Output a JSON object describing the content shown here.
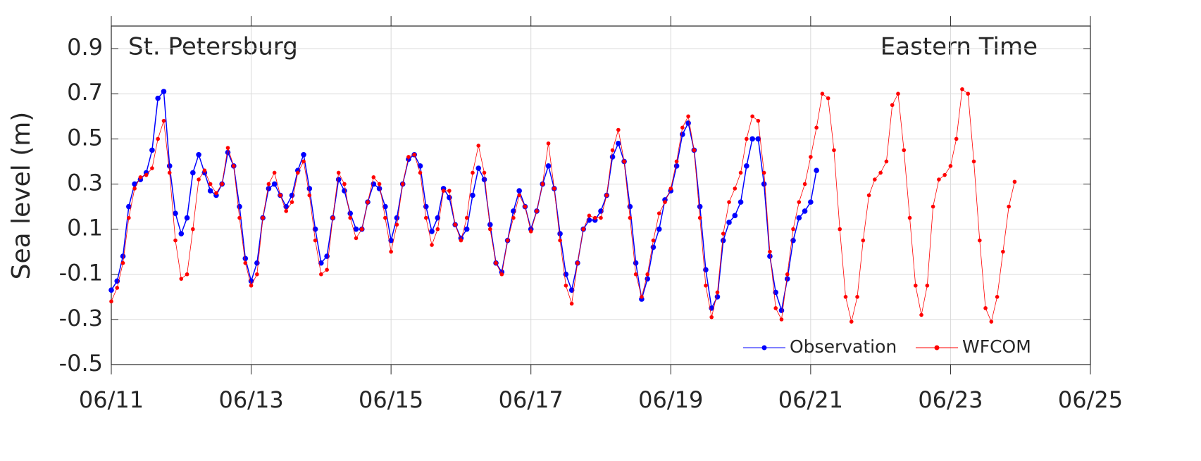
{
  "chart_data": {
    "type": "line",
    "annotations": [
      "St. Petersburg",
      "Eastern Time"
    ],
    "y_label": "Sea level (m)",
    "x": [
      0,
      2,
      4,
      6,
      8,
      10,
      12,
      14,
      16,
      18,
      20,
      22,
      24,
      26,
      28,
      30,
      32,
      34,
      36,
      38,
      40,
      42,
      44,
      46,
      48,
      50,
      52,
      54,
      56,
      58,
      60,
      62,
      64,
      66,
      68,
      70,
      72,
      74,
      76,
      78,
      80,
      82,
      84,
      86,
      88,
      90,
      92,
      94,
      96,
      98,
      100,
      102,
      104,
      106,
      108,
      110,
      112,
      114,
      116,
      118,
      120,
      122,
      124,
      126,
      128,
      130,
      132,
      134,
      136,
      138,
      140,
      142,
      144,
      146,
      148,
      150,
      152,
      154,
      156,
      158,
      160,
      162,
      164,
      166,
      168,
      170,
      172,
      174,
      176,
      178,
      180,
      182,
      184,
      186,
      188,
      190,
      192,
      194,
      196,
      198,
      200,
      202,
      204,
      206,
      208,
      210,
      212,
      214,
      216,
      218,
      220,
      222,
      224,
      226,
      228,
      230,
      232,
      234,
      236,
      238,
      240,
      242,
      244,
      246,
      248,
      250,
      252,
      254,
      256,
      258,
      260,
      262,
      264,
      266,
      268,
      270,
      272,
      274,
      276,
      278,
      280,
      282,
      284,
      286,
      288,
      290,
      292,
      294,
      296,
      298,
      300,
      302,
      304,
      306,
      308,
      310
    ],
    "series": [
      {
        "name": "Observation",
        "color": "#0000ff",
        "values": [
          -0.17,
          -0.13,
          -0.02,
          0.2,
          0.3,
          0.32,
          0.35,
          0.45,
          0.68,
          0.71,
          0.38,
          0.17,
          0.08,
          0.15,
          0.35,
          0.43,
          0.35,
          0.27,
          0.25,
          0.3,
          0.44,
          0.38,
          0.2,
          -0.03,
          -0.13,
          -0.05,
          0.15,
          0.28,
          0.3,
          0.25,
          0.2,
          0.25,
          0.36,
          0.43,
          0.28,
          0.1,
          -0.05,
          -0.02,
          0.15,
          0.32,
          0.27,
          0.17,
          0.1,
          0.1,
          0.22,
          0.3,
          0.28,
          0.2,
          0.05,
          0.15,
          0.3,
          0.41,
          0.43,
          0.38,
          0.2,
          0.09,
          0.15,
          0.28,
          0.24,
          0.12,
          0.06,
          0.1,
          0.25,
          0.37,
          0.32,
          0.12,
          -0.05,
          -0.09,
          0.05,
          0.18,
          0.27,
          0.2,
          0.1,
          0.18,
          0.3,
          0.38,
          0.28,
          0.08,
          -0.1,
          -0.17,
          -0.05,
          0.1,
          0.14,
          0.14,
          0.18,
          0.25,
          0.42,
          0.48,
          0.4,
          0.2,
          -0.05,
          -0.21,
          -0.12,
          0.02,
          0.1,
          0.23,
          0.27,
          0.38,
          0.52,
          0.57,
          0.45,
          0.2,
          -0.08,
          -0.25,
          -0.2,
          0.05,
          0.13,
          0.16,
          0.22,
          0.38,
          0.5,
          0.5,
          0.3,
          -0.02,
          -0.18,
          -0.26,
          -0.12,
          0.05,
          0.15,
          0.18,
          0.22,
          0.36,
          null,
          null,
          null,
          null,
          null,
          null,
          null,
          null,
          null,
          null,
          null,
          null,
          null,
          null,
          null,
          null,
          null,
          null,
          null,
          null,
          null,
          null,
          null,
          null,
          null,
          null,
          null,
          null,
          null,
          null,
          null,
          null,
          null,
          null
        ]
      },
      {
        "name": "WFCOM",
        "color": "#ff0000",
        "values": [
          -0.22,
          -0.16,
          -0.05,
          0.15,
          0.28,
          0.33,
          0.34,
          0.37,
          0.5,
          0.58,
          0.35,
          0.05,
          -0.12,
          -0.1,
          0.1,
          0.32,
          0.36,
          0.3,
          0.26,
          0.3,
          0.46,
          0.38,
          0.15,
          -0.05,
          -0.15,
          -0.1,
          0.15,
          0.3,
          0.35,
          0.25,
          0.18,
          0.22,
          0.35,
          0.4,
          0.25,
          0.05,
          -0.1,
          -0.08,
          0.15,
          0.35,
          0.3,
          0.15,
          0.06,
          0.1,
          0.22,
          0.33,
          0.3,
          0.15,
          0.0,
          0.12,
          0.3,
          0.42,
          0.43,
          0.35,
          0.15,
          0.03,
          0.1,
          0.27,
          0.27,
          0.12,
          0.05,
          0.15,
          0.35,
          0.47,
          0.35,
          0.1,
          -0.05,
          -0.1,
          0.05,
          0.15,
          0.25,
          0.2,
          0.09,
          0.18,
          0.3,
          0.48,
          0.28,
          0.05,
          -0.15,
          -0.23,
          -0.05,
          0.1,
          0.16,
          0.15,
          0.15,
          0.25,
          0.45,
          0.54,
          0.4,
          0.15,
          -0.1,
          -0.2,
          -0.1,
          0.05,
          0.17,
          0.22,
          0.28,
          0.4,
          0.55,
          0.6,
          0.45,
          0.15,
          -0.15,
          -0.29,
          -0.18,
          0.08,
          0.22,
          0.28,
          0.35,
          0.5,
          0.6,
          0.58,
          0.35,
          0.0,
          -0.25,
          -0.3,
          -0.1,
          0.1,
          0.22,
          0.3,
          0.42,
          0.55,
          0.7,
          0.68,
          0.45,
          0.1,
          -0.2,
          -0.31,
          -0.2,
          0.05,
          0.25,
          0.32,
          0.35,
          0.4,
          0.65,
          0.7,
          0.45,
          0.15,
          -0.15,
          -0.28,
          -0.15,
          0.2,
          0.32,
          0.34,
          0.38,
          0.5,
          0.72,
          0.7,
          0.4,
          0.05,
          -0.25,
          -0.31,
          -0.2,
          0.0,
          0.2,
          0.31
        ]
      }
    ],
    "xlim": [
      0,
      336
    ],
    "xticks": [
      {
        "value": 0,
        "label": "06/11"
      },
      {
        "value": 48,
        "label": "06/13"
      },
      {
        "value": 96,
        "label": "06/15"
      },
      {
        "value": 144,
        "label": "06/17"
      },
      {
        "value": 192,
        "label": "06/19"
      },
      {
        "value": 240,
        "label": "06/21"
      },
      {
        "value": 288,
        "label": "06/23"
      },
      {
        "value": 336,
        "label": "06/25"
      }
    ],
    "ylim": [
      -0.5,
      1.0
    ],
    "yticks": [
      -0.5,
      -0.3,
      -0.1,
      0.1,
      0.3,
      0.5,
      0.7,
      0.9
    ],
    "grid": true,
    "legend": "lower right"
  }
}
